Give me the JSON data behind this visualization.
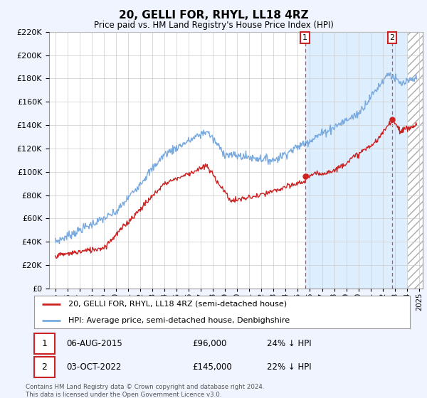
{
  "title": "20, GELLI FOR, RHYL, LL18 4RZ",
  "subtitle": "Price paid vs. HM Land Registry's House Price Index (HPI)",
  "ylim": [
    0,
    220000
  ],
  "yticks": [
    0,
    20000,
    40000,
    60000,
    80000,
    100000,
    120000,
    140000,
    160000,
    180000,
    200000,
    220000
  ],
  "xlim_start": 1994.5,
  "xlim_end": 2025.3,
  "hpi_color": "#7aaadd",
  "price_color": "#cc2222",
  "transaction1_date": 2015.6,
  "transaction1_price": 96000,
  "transaction1_label": "1",
  "transaction2_date": 2022.78,
  "transaction2_price": 145000,
  "transaction2_label": "2",
  "shade_start": 2015.6,
  "shade_end": 2025.3,
  "legend_house_label": "20, GELLI FOR, RHYL, LL18 4RZ (semi-detached house)",
  "legend_hpi_label": "HPI: Average price, semi-detached house, Denbighshire",
  "footnote": "Contains HM Land Registry data © Crown copyright and database right 2024.\nThis data is licensed under the Open Government Licence v3.0.",
  "background_color": "#f0f4ff",
  "plot_bg_color": "#ffffff",
  "grid_color": "#cccccc",
  "shade_color": "#ddeeff"
}
